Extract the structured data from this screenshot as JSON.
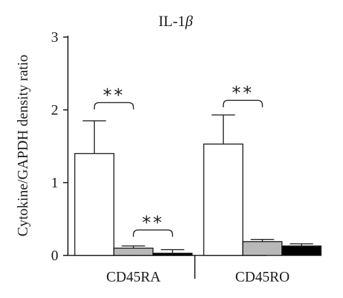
{
  "chart_data": {
    "type": "bar",
    "title_main": "IL-1",
    "title_symbol": "β",
    "xlabel": "",
    "ylabel": "Cytokine/GAPDH density ratio",
    "ylim": [
      0,
      3
    ],
    "yticks": [
      0,
      1,
      2,
      3
    ],
    "grid": false,
    "legend": "none",
    "groups": [
      "CD45RA",
      "CD45RO"
    ],
    "series": [
      {
        "color": "#ffffff",
        "values": [
          1.4,
          1.53
        ],
        "errors": [
          0.45,
          0.4
        ]
      },
      {
        "color": "#b8b8b8",
        "values": [
          0.1,
          0.19
        ],
        "errors": [
          0.03,
          0.03
        ]
      },
      {
        "color": "#000000",
        "values": [
          0.03,
          0.13
        ],
        "errors": [
          0.05,
          0.03
        ]
      }
    ],
    "significance": [
      {
        "label": "**",
        "group": 0,
        "from_series": 0,
        "to_series": 1,
        "y": 2.1
      },
      {
        "label": "**",
        "group": 0,
        "from_series": 1,
        "to_series": 2,
        "y": 0.35
      },
      {
        "label": "**",
        "group": 1,
        "from_series": 0,
        "to_series": 1,
        "y": 2.13
      }
    ]
  }
}
